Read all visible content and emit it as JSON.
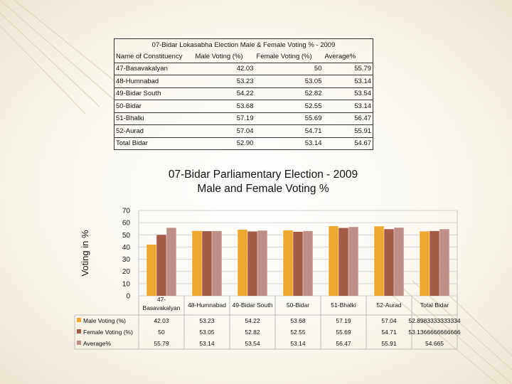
{
  "table": {
    "title": "07-Bidar Lokasabha Election Male & Female Voting % - 2009",
    "headers": [
      "Name of Constituency",
      "Male Voting (%)",
      "Female Voting (%)",
      "Average%"
    ],
    "rows": [
      [
        "47-Basavakalyan",
        "42.03",
        "50",
        "55.79"
      ],
      [
        "48-Humnabad",
        "53.23",
        "53.05",
        "53.14"
      ],
      [
        "49-Bidar South",
        "54.22",
        "52.82",
        "53.54"
      ],
      [
        "50-Bidar",
        "53.68",
        "52.55",
        "53.14"
      ],
      [
        "51-Bhalki",
        "57.19",
        "55.69",
        "56.47"
      ],
      [
        "52-Aurad",
        "57.04",
        "54.71",
        "55.91"
      ],
      [
        "Total Bidar",
        "52.90",
        "53.14",
        "54.67"
      ]
    ]
  },
  "chart_data": {
    "type": "bar",
    "title": "07-Bidar Parliamentary Election - 2009",
    "subtitle": "Male and Female Voting %",
    "xlabel": "",
    "ylabel": "Voting in %",
    "ylim": [
      0,
      70
    ],
    "yticks": [
      0,
      10,
      20,
      30,
      40,
      50,
      60,
      70
    ],
    "grid": true,
    "categories": [
      "47-Basavakalyan",
      "48-Humnabad",
      "49-Bidar South",
      "50-Bidar",
      "51-Bhalki",
      "52-Aurad",
      "Total Bidar"
    ],
    "category_labels": [
      [
        "47-",
        "Basavakalyan"
      ],
      [
        "48-Humnabad"
      ],
      [
        "49-Bidar South"
      ],
      [
        "50-Bidar"
      ],
      [
        "51-Bhalki"
      ],
      [
        "52-Aurad"
      ],
      [
        "Total Bidar"
      ]
    ],
    "series": [
      {
        "name": "Male Voting (%)",
        "color": "#f0a830",
        "values": [
          42.03,
          53.23,
          54.22,
          53.68,
          57.19,
          57.04,
          52.8983333333334
        ],
        "labels": [
          "42.03",
          "53.23",
          "54.22",
          "53.68",
          "57.19",
          "57.04",
          "52.8983333333334"
        ]
      },
      {
        "name": "Female Voting (%)",
        "color": "#a55b45",
        "values": [
          50,
          53.05,
          52.82,
          52.55,
          55.69,
          54.71,
          53.1366666666666
        ],
        "labels": [
          "50",
          "53.05",
          "52.82",
          "52.55",
          "55.69",
          "54.71",
          "53.1366666666666"
        ]
      },
      {
        "name": "Average%",
        "color": "#c09088",
        "values": [
          55.79,
          53.14,
          53.54,
          53.14,
          56.47,
          55.91,
          54.665
        ],
        "labels": [
          "55.79",
          "53.14",
          "53.54",
          "53.14",
          "56.47",
          "55.91",
          "54.665"
        ]
      }
    ]
  }
}
